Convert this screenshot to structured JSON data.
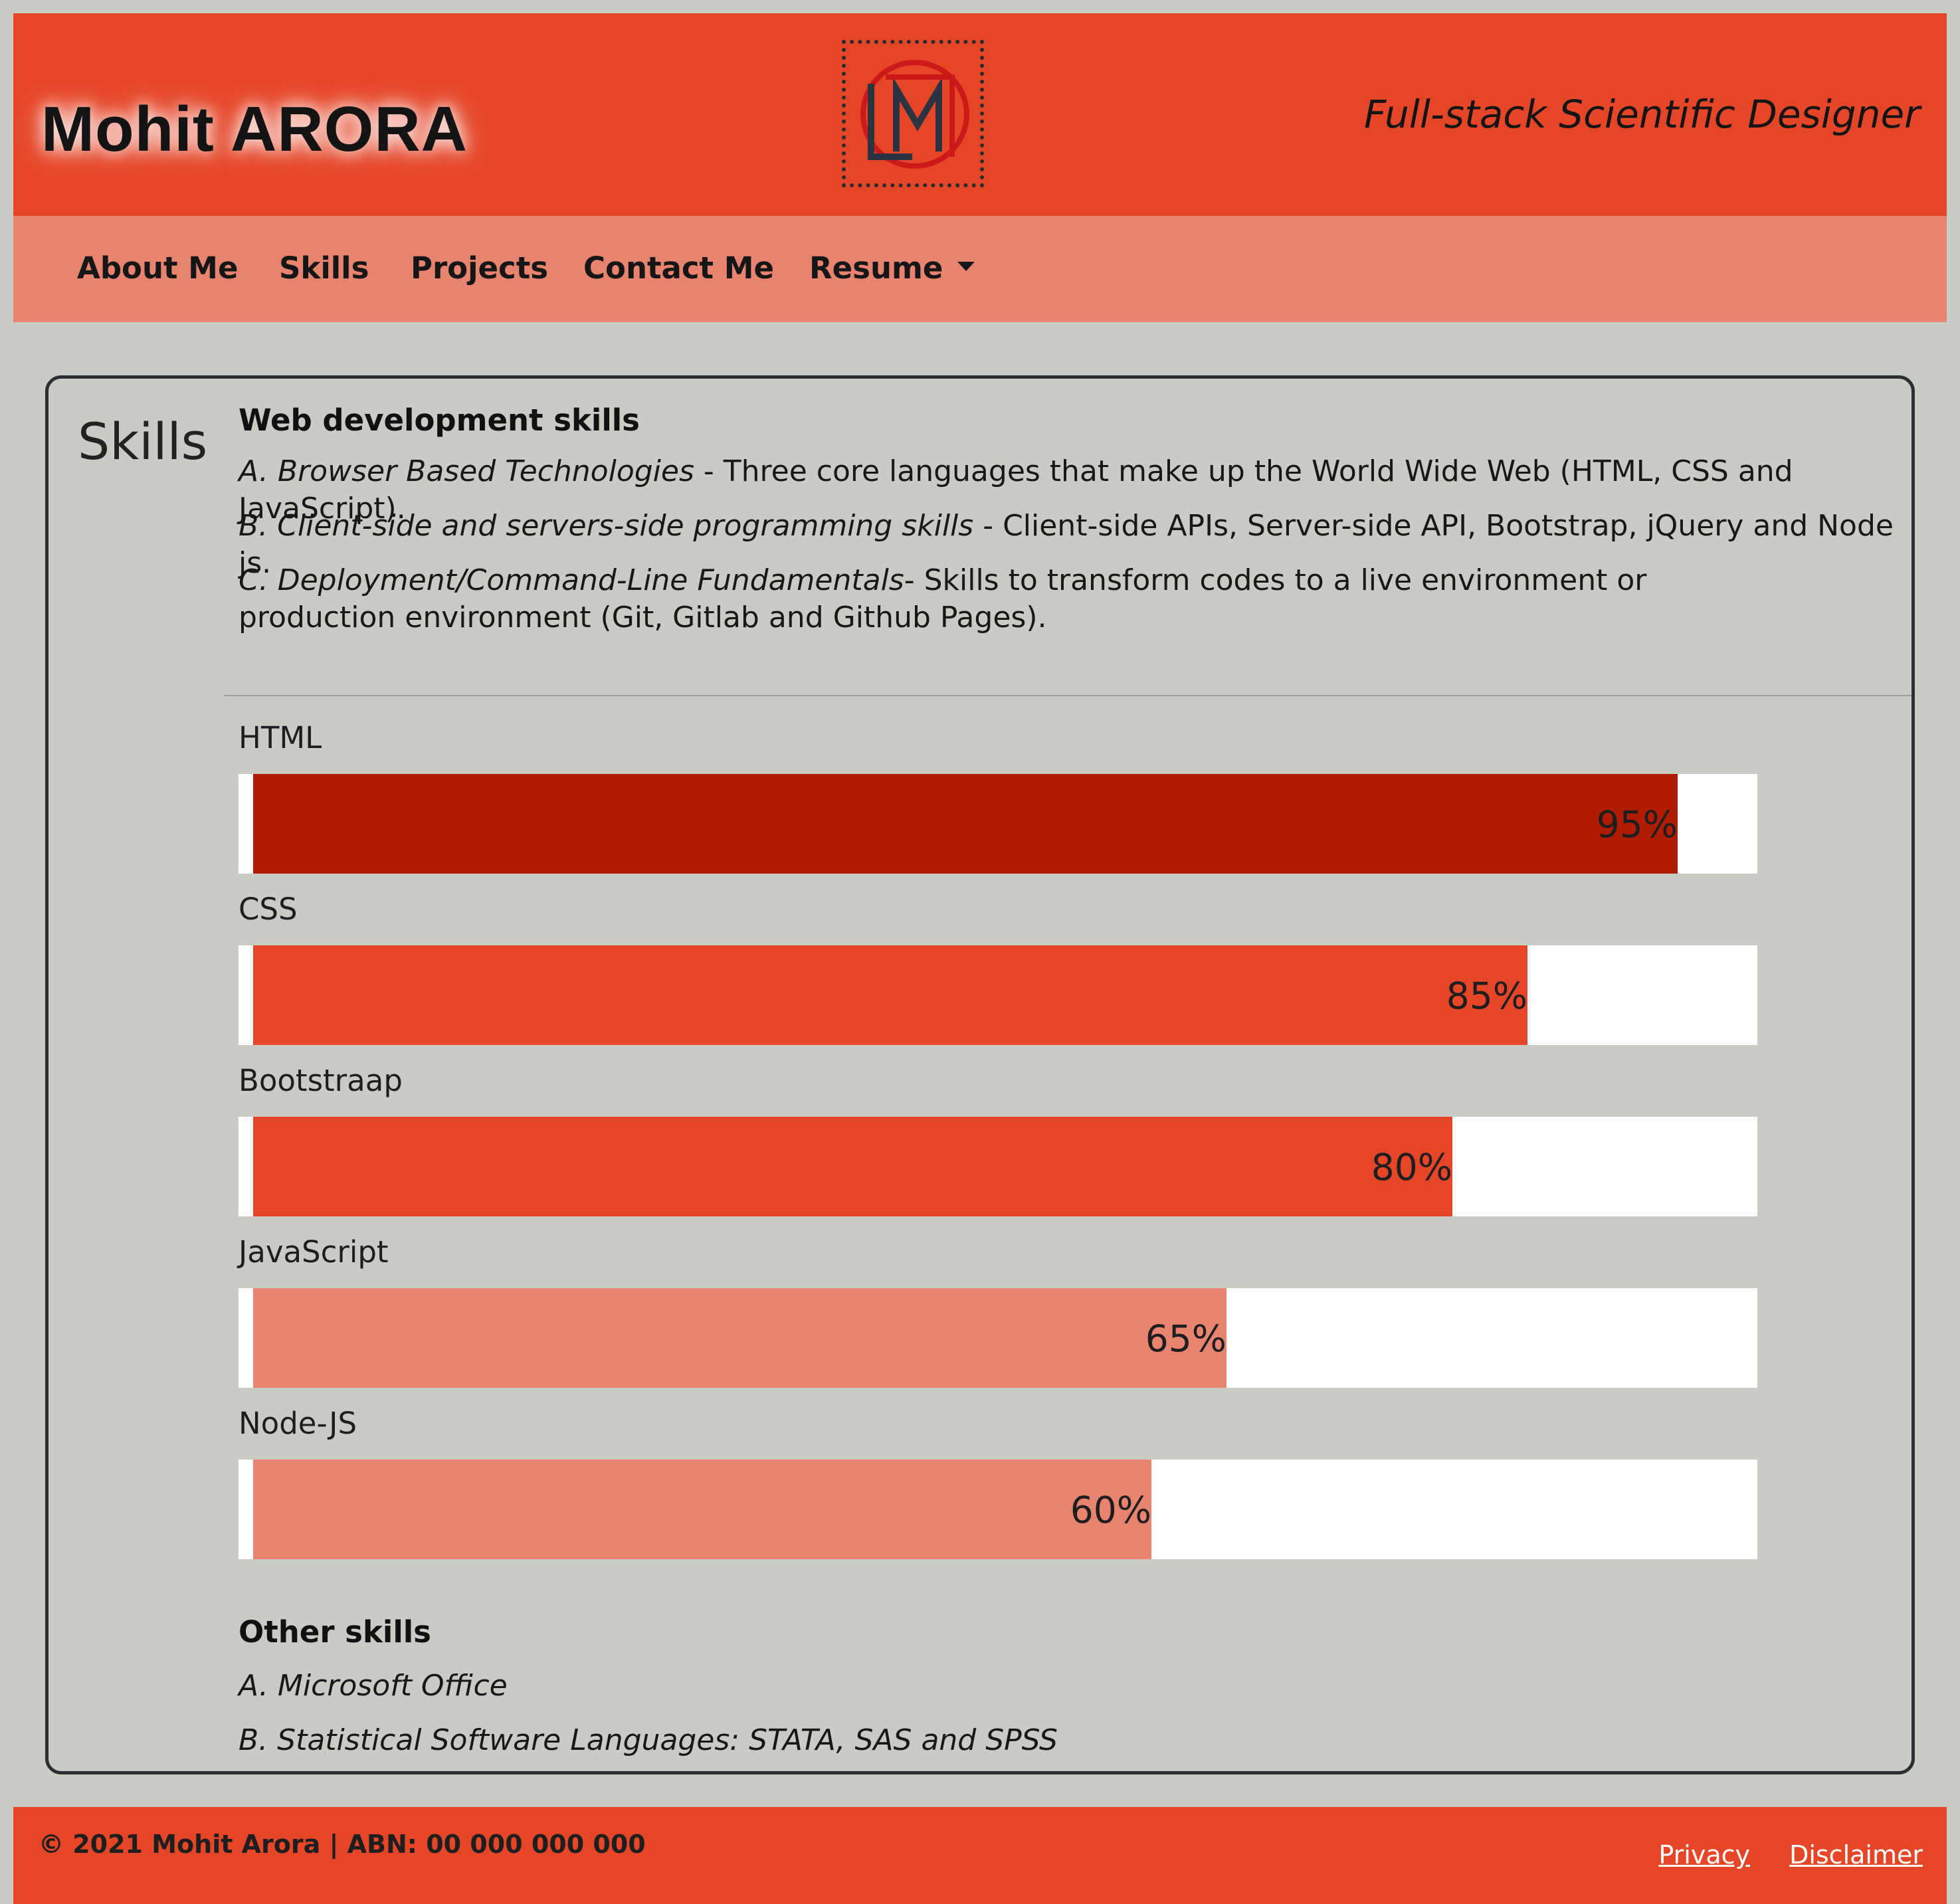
{
  "header": {
    "brand": "Mohit ARORA",
    "tagline": "Full-stack Scientific Designer",
    "logo_icon": "mla-monogram-logo"
  },
  "nav": {
    "items": [
      {
        "label": "About Me"
      },
      {
        "label": "Skills"
      },
      {
        "label": "Projects"
      },
      {
        "label": "Contact Me"
      },
      {
        "label": "Resume"
      }
    ]
  },
  "skills": {
    "title": "Skills",
    "web_heading": "Web development skills",
    "web_items": [
      {
        "lead": "A. Browser Based Technologies",
        "rest": " - Three core languages that make up the World Wide Web (HTML, CSS and JavaScript)."
      },
      {
        "lead": "B. Client-side and servers-side programming skills",
        "rest": " - Client-side APIs, Server-side API, Bootstrap, jQuery and Node js."
      },
      {
        "lead": "C. Deployment/Command-Line Fundamentals",
        "rest": "- Skills to transform codes to a live environment or production environment (Git, Gitlab and Github Pages)."
      }
    ],
    "bars": [
      {
        "name": "HTML",
        "percent": 95,
        "label": "95%",
        "color": "#b01c00"
      },
      {
        "name": "CSS",
        "percent": 85,
        "label": "85%",
        "color": "#e64628"
      },
      {
        "name": "Bootstraap",
        "percent": 80,
        "label": "80%",
        "color": "#e64628"
      },
      {
        "name": "JavaScript",
        "percent": 65,
        "label": "65%",
        "color": "#e8836f"
      },
      {
        "name": "Node-JS",
        "percent": 60,
        "label": "60%",
        "color": "#e8836f"
      }
    ],
    "other_heading": "Other skills",
    "other_items": [
      "A. Microsoft Office",
      "B. Statistical Software Languages: STATA, SAS and SPSS"
    ]
  },
  "footer": {
    "copyright": "© 2021 Mohit Arora | ABN: 00 000 000 000",
    "privacy": "Privacy",
    "disclaimer": "Disclaimer"
  },
  "colors": {
    "primary": "#e64628",
    "nav_bg": "#e8836f",
    "page_bg": "#c9ccc5"
  }
}
